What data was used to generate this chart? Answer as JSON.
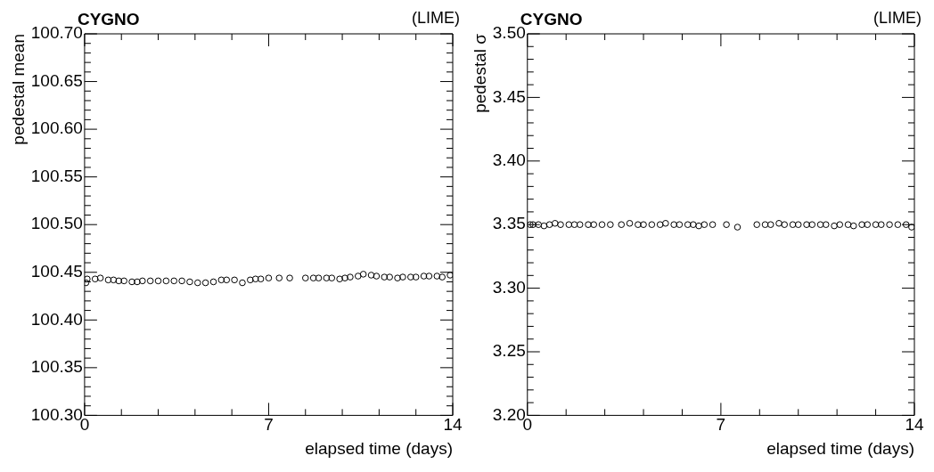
{
  "chart_data": [
    {
      "type": "scatter",
      "title": "CYGNO",
      "subtitle": "(LIME)",
      "xlabel": "elapsed time (days)",
      "ylabel": "pedestal mean",
      "marker": "circle",
      "xlim": [
        0,
        14
      ],
      "xticks": [
        0,
        {
          "value": 1.4,
          "label": null
        },
        {
          "value": 2.8,
          "label": null
        },
        {
          "value": 4.2,
          "label": null
        },
        {
          "value": 5.6,
          "label": null
        },
        7,
        {
          "value": 8.4,
          "label": null
        },
        {
          "value": 9.8,
          "label": null
        },
        {
          "value": 11.2,
          "label": null
        },
        {
          "value": 12.6,
          "label": null
        },
        14
      ],
      "ylim": [
        100.3,
        100.7
      ],
      "yticks": [
        {
          "value": 100.3,
          "label": "100.30"
        },
        {
          "value": 100.31,
          "label": null
        },
        {
          "value": 100.32,
          "label": null
        },
        {
          "value": 100.33,
          "label": null
        },
        {
          "value": 100.34,
          "label": null
        },
        {
          "value": 100.35,
          "label": "100.35"
        },
        {
          "value": 100.36,
          "label": null
        },
        {
          "value": 100.37,
          "label": null
        },
        {
          "value": 100.38,
          "label": null
        },
        {
          "value": 100.39,
          "label": null
        },
        {
          "value": 100.4,
          "label": "100.40"
        },
        {
          "value": 100.41,
          "label": null
        },
        {
          "value": 100.42,
          "label": null
        },
        {
          "value": 100.43,
          "label": null
        },
        {
          "value": 100.44,
          "label": null
        },
        {
          "value": 100.45,
          "label": "100.45"
        },
        {
          "value": 100.46,
          "label": null
        },
        {
          "value": 100.47,
          "label": null
        },
        {
          "value": 100.48,
          "label": null
        },
        {
          "value": 100.49,
          "label": null
        },
        {
          "value": 100.5,
          "label": "100.50"
        },
        {
          "value": 100.51,
          "label": null
        },
        {
          "value": 100.52,
          "label": null
        },
        {
          "value": 100.53,
          "label": null
        },
        {
          "value": 100.54,
          "label": null
        },
        {
          "value": 100.55,
          "label": "100.55"
        },
        {
          "value": 100.56,
          "label": null
        },
        {
          "value": 100.57,
          "label": null
        },
        {
          "value": 100.58,
          "label": null
        },
        {
          "value": 100.59,
          "label": null
        },
        {
          "value": 100.6,
          "label": "100.60"
        },
        {
          "value": 100.61,
          "label": null
        },
        {
          "value": 100.62,
          "label": null
        },
        {
          "value": 100.63,
          "label": null
        },
        {
          "value": 100.64,
          "label": null
        },
        {
          "value": 100.65,
          "label": "100.65"
        },
        {
          "value": 100.66,
          "label": null
        },
        {
          "value": 100.67,
          "label": null
        },
        {
          "value": 100.68,
          "label": null
        },
        {
          "value": 100.69,
          "label": null
        },
        {
          "value": 100.7,
          "label": "100.70"
        }
      ],
      "series": [
        {
          "color": "#000000",
          "x": [
            0.05,
            0.1,
            0.4,
            0.6,
            0.9,
            1.1,
            1.3,
            1.5,
            1.8,
            2.0,
            2.2,
            2.5,
            2.8,
            3.1,
            3.4,
            3.7,
            4.0,
            4.3,
            4.6,
            4.9,
            5.2,
            5.4,
            5.7,
            6.0,
            6.3,
            6.5,
            6.7,
            7.0,
            7.4,
            7.8,
            8.4,
            8.7,
            8.9,
            9.2,
            9.4,
            9.7,
            9.9,
            10.1,
            10.4,
            10.6,
            10.9,
            11.1,
            11.4,
            11.6,
            11.9,
            12.1,
            12.4,
            12.6,
            12.9,
            13.1,
            13.4,
            13.6,
            13.9
          ],
          "values": [
            100.439,
            100.443,
            100.443,
            100.444,
            100.442,
            100.442,
            100.441,
            100.441,
            100.44,
            100.44,
            100.441,
            100.441,
            100.441,
            100.441,
            100.441,
            100.441,
            100.44,
            100.439,
            100.439,
            100.44,
            100.442,
            100.442,
            100.442,
            100.439,
            100.442,
            100.443,
            100.443,
            100.444,
            100.444,
            100.444,
            100.444,
            100.444,
            100.444,
            100.444,
            100.444,
            100.443,
            100.444,
            100.445,
            100.446,
            100.448,
            100.447,
            100.446,
            100.445,
            100.445,
            100.444,
            100.445,
            100.445,
            100.445,
            100.446,
            100.446,
            100.446,
            100.445,
            100.447
          ]
        }
      ]
    },
    {
      "type": "scatter",
      "title": "CYGNO",
      "subtitle": "(LIME)",
      "xlabel": "elapsed time (days)",
      "ylabel": "pedestal σ",
      "marker": "circle",
      "xlim": [
        0,
        14
      ],
      "xticks": [
        0,
        {
          "value": 1.4,
          "label": null
        },
        {
          "value": 2.8,
          "label": null
        },
        {
          "value": 4.2,
          "label": null
        },
        {
          "value": 5.6,
          "label": null
        },
        7,
        {
          "value": 8.4,
          "label": null
        },
        {
          "value": 9.8,
          "label": null
        },
        {
          "value": 11.2,
          "label": null
        },
        {
          "value": 12.6,
          "label": null
        },
        14
      ],
      "ylim": [
        3.2,
        3.5
      ],
      "yticks": [
        {
          "value": 3.2,
          "label": "3.20"
        },
        {
          "value": 3.21,
          "label": null
        },
        {
          "value": 3.22,
          "label": null
        },
        {
          "value": 3.23,
          "label": null
        },
        {
          "value": 3.24,
          "label": null
        },
        {
          "value": 3.25,
          "label": "3.25"
        },
        {
          "value": 3.26,
          "label": null
        },
        {
          "value": 3.27,
          "label": null
        },
        {
          "value": 3.28,
          "label": null
        },
        {
          "value": 3.29,
          "label": null
        },
        {
          "value": 3.3,
          "label": "3.30"
        },
        {
          "value": 3.31,
          "label": null
        },
        {
          "value": 3.32,
          "label": null
        },
        {
          "value": 3.33,
          "label": null
        },
        {
          "value": 3.34,
          "label": null
        },
        {
          "value": 3.35,
          "label": "3.35"
        },
        {
          "value": 3.36,
          "label": null
        },
        {
          "value": 3.37,
          "label": null
        },
        {
          "value": 3.38,
          "label": null
        },
        {
          "value": 3.39,
          "label": null
        },
        {
          "value": 3.4,
          "label": "3.40"
        },
        {
          "value": 3.41,
          "label": null
        },
        {
          "value": 3.42,
          "label": null
        },
        {
          "value": 3.43,
          "label": null
        },
        {
          "value": 3.44,
          "label": null
        },
        {
          "value": 3.45,
          "label": "3.45"
        },
        {
          "value": 3.46,
          "label": null
        },
        {
          "value": 3.47,
          "label": null
        },
        {
          "value": 3.48,
          "label": null
        },
        {
          "value": 3.49,
          "label": null
        },
        {
          "value": 3.5,
          "label": "3.50"
        }
      ],
      "series": [
        {
          "color": "#000000",
          "x": [
            0.1,
            0.2,
            0.4,
            0.6,
            0.8,
            1.0,
            1.2,
            1.5,
            1.7,
            1.9,
            2.2,
            2.4,
            2.7,
            3.0,
            3.4,
            3.7,
            4.0,
            4.2,
            4.5,
            4.8,
            5.0,
            5.3,
            5.5,
            5.8,
            6.0,
            6.2,
            6.4,
            6.7,
            7.2,
            7.6,
            8.3,
            8.6,
            8.8,
            9.1,
            9.3,
            9.6,
            9.8,
            10.1,
            10.3,
            10.6,
            10.8,
            11.1,
            11.3,
            11.6,
            11.8,
            12.1,
            12.3,
            12.6,
            12.8,
            13.1,
            13.4,
            13.7,
            13.9
          ],
          "values": [
            3.35,
            3.35,
            3.35,
            3.349,
            3.35,
            3.351,
            3.35,
            3.35,
            3.35,
            3.35,
            3.35,
            3.35,
            3.35,
            3.35,
            3.35,
            3.351,
            3.35,
            3.35,
            3.35,
            3.35,
            3.351,
            3.35,
            3.35,
            3.35,
            3.35,
            3.349,
            3.35,
            3.35,
            3.35,
            3.348,
            3.35,
            3.35,
            3.35,
            3.351,
            3.35,
            3.35,
            3.35,
            3.35,
            3.35,
            3.35,
            3.35,
            3.349,
            3.35,
            3.35,
            3.349,
            3.35,
            3.35,
            3.35,
            3.35,
            3.35,
            3.35,
            3.35,
            3.348
          ]
        }
      ]
    }
  ]
}
